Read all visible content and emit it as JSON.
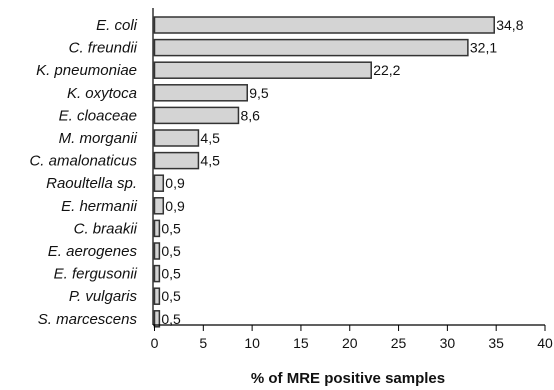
{
  "chart_data": {
    "type": "bar",
    "orientation": "horizontal",
    "categories": [
      "E. coli",
      "C. freundii",
      "K. pneumoniae",
      "K. oxytoca",
      "E. cloaceae",
      "M. morganii",
      "C. amalonaticus",
      "Raoultella sp.",
      "E. hermanii",
      "C. braakii",
      "E. aerogenes",
      "E. fergusonii",
      "P. vulgaris",
      "S. marcescens"
    ],
    "values": [
      34.8,
      32.1,
      22.2,
      9.5,
      8.6,
      4.5,
      4.5,
      0.9,
      0.9,
      0.5,
      0.5,
      0.5,
      0.5,
      0.5
    ],
    "value_labels": [
      "34,8",
      "32,1",
      "22,2",
      "9,5",
      "8,6",
      "4,5",
      "4,5",
      "0,9",
      "0,9",
      "0,5",
      "0,5",
      "0,5",
      "0,5",
      "0,5"
    ],
    "xlabel": "% of MRE positive samples",
    "ylabel": "",
    "title": "",
    "xlim": [
      0,
      40
    ],
    "xticks": [
      0,
      5,
      10,
      15,
      20,
      25,
      30,
      35,
      40
    ],
    "grid": false,
    "legend": "none",
    "colors": {
      "bar_fill": "#d4d4d4",
      "bar_stroke": "#333333",
      "axis": "#000000"
    }
  }
}
